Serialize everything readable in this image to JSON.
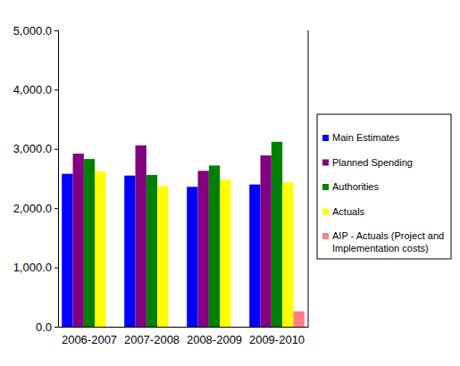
{
  "chart_data": {
    "type": "bar",
    "categories": [
      "2006-2007",
      "2007-2008",
      "2008-2009",
      "2009-2010"
    ],
    "series": [
      {
        "name": "Main Estimates",
        "color": "#0000ff",
        "values": [
          2580,
          2550,
          2360,
          2400
        ]
      },
      {
        "name": "Planned Spending",
        "color": "#800080",
        "values": [
          2920,
          3060,
          2630,
          2890
        ]
      },
      {
        "name": "Authorities",
        "color": "#008000",
        "values": [
          2830,
          2560,
          2720,
          3120
        ]
      },
      {
        "name": "Actuals",
        "color": "#ffff00",
        "values": [
          2620,
          2370,
          2480,
          2440
        ]
      },
      {
        "name": "AIP - Actuals (Project and Implementation costs)",
        "color": "#ff8080",
        "values": [
          null,
          null,
          null,
          260
        ]
      }
    ],
    "ylim": [
      0,
      5000
    ],
    "yticks": [
      {
        "value": 0,
        "label": "0.0"
      },
      {
        "value": 1000,
        "label": "1,000.0"
      },
      {
        "value": 2000,
        "label": "2,000.0"
      },
      {
        "value": 3000,
        "label": "3,000.0"
      },
      {
        "value": 4000,
        "label": "4,000.0"
      },
      {
        "value": 5000,
        "label": "5,000.0"
      }
    ],
    "grid": false,
    "legend": "right"
  }
}
